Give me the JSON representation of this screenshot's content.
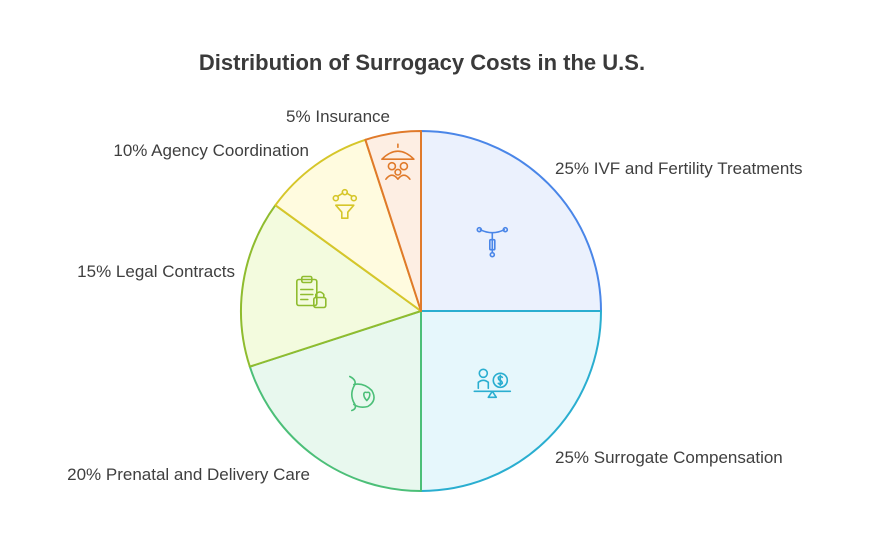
{
  "chart_data": {
    "type": "pie",
    "title": "Distribution of Surrogacy Costs in the U.S.",
    "slices": [
      {
        "label": "25% IVF and Fertility Treatments",
        "value": 25,
        "stroke": "#4a86e8",
        "fill": "#ebf1fd",
        "icon": "iud-icon"
      },
      {
        "label": "25% Surrogate Compensation",
        "value": 25,
        "stroke": "#2aaed0",
        "fill": "#e6f7fc",
        "icon": "person-money-scale-icon"
      },
      {
        "label": "20% Prenatal and Delivery Care",
        "value": 20,
        "stroke": "#4cbf78",
        "fill": "#e8f8ee",
        "icon": "pregnant-heart-icon"
      },
      {
        "label": "15% Legal Contracts",
        "value": 15,
        "stroke": "#8fbc2f",
        "fill": "#f3fbde",
        "icon": "clipboard-lock-icon"
      },
      {
        "label": "10% Agency Coordination",
        "value": 10,
        "stroke": "#d6c62a",
        "fill": "#fffbdf",
        "icon": "network-funnel-icon"
      },
      {
        "label": "5% Insurance",
        "value": 5,
        "stroke": "#e07a2a",
        "fill": "#fdeee3",
        "icon": "umbrella-family-icon"
      }
    ]
  }
}
